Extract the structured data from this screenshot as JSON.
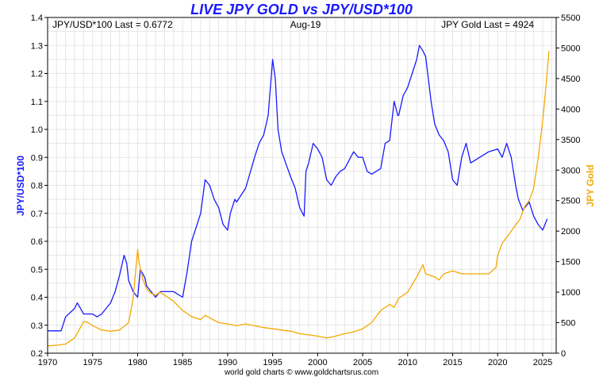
{
  "chart_data": {
    "type": "line",
    "title": "LIVE JPY GOLD vs JPY/USD*100",
    "header_left": "JPY/USD*100 Last = 0.6772",
    "header_center": "Aug-19",
    "header_right": "JPY Gold Last = 4924",
    "credit": "world gold charts © www.goldchartsrus.com",
    "ylabel_left": "JPY/USD*100",
    "ylabel_right": "JPY Gold",
    "xlim": [
      1970,
      2026.5
    ],
    "ylim_left": [
      0.2,
      1.4
    ],
    "ylim_right": [
      0,
      5500
    ],
    "x_ticks": [
      1970,
      1975,
      1980,
      1985,
      1990,
      1995,
      2000,
      2005,
      2010,
      2015,
      2020,
      2025
    ],
    "y_ticks_left": [
      "0.2",
      "0.3",
      "0.4",
      "0.5",
      "0.6",
      "0.7",
      "0.8",
      "0.9",
      "1.0",
      "1.1",
      "1.2",
      "1.3",
      "1.4"
    ],
    "y_ticks_right": [
      "0",
      "500",
      "1000",
      "1500",
      "2000",
      "2500",
      "3000",
      "3500",
      "4000",
      "4500",
      "5000",
      "5500"
    ],
    "grid": true,
    "series": [
      {
        "name": "JPY/USD*100",
        "axis": "left",
        "color": "#1a1aff",
        "x": [
          1970,
          1971.5,
          1971.7,
          1972,
          1973,
          1973.3,
          1974,
          1975,
          1975.5,
          1976,
          1977,
          1977.5,
          1978,
          1978.5,
          1978.8,
          1979,
          1979.5,
          1980,
          1980.3,
          1980.8,
          1981,
          1982,
          1982.5,
          1983,
          1984,
          1985,
          1985.5,
          1986,
          1986.5,
          1987,
          1987.5,
          1988,
          1988.5,
          1989,
          1989.5,
          1990,
          1990.3,
          1990.8,
          1991,
          1992,
          1993,
          1993.5,
          1994,
          1994.5,
          1995,
          1995.3,
          1995.6,
          1996,
          1997,
          1997.5,
          1998,
          1998.5,
          1998.7,
          1999,
          1999.5,
          2000,
          2000.5,
          2001,
          2001.5,
          2002,
          2002.5,
          2003,
          2004,
          2004.5,
          2005,
          2005.5,
          2006,
          2007,
          2007.5,
          2008,
          2008.5,
          2008.9,
          2009,
          2009.5,
          2010,
          2010.5,
          2011,
          2011.3,
          2011.7,
          2012,
          2012.3,
          2012.6,
          2013,
          2013.5,
          2014,
          2014.5,
          2015,
          2015.5,
          2016,
          2016.5,
          2017,
          2018,
          2019,
          2020,
          2020.5,
          2021,
          2021.5,
          2022,
          2022.3,
          2022.8,
          2023,
          2023.5,
          2024,
          2024.5,
          2025,
          2025.5
        ],
        "values": [
          0.28,
          0.28,
          0.3,
          0.33,
          0.36,
          0.38,
          0.34,
          0.34,
          0.33,
          0.34,
          0.38,
          0.42,
          0.48,
          0.55,
          0.52,
          0.46,
          0.42,
          0.4,
          0.5,
          0.47,
          0.44,
          0.4,
          0.42,
          0.42,
          0.42,
          0.4,
          0.49,
          0.6,
          0.65,
          0.7,
          0.82,
          0.8,
          0.75,
          0.72,
          0.66,
          0.64,
          0.7,
          0.75,
          0.74,
          0.79,
          0.9,
          0.95,
          0.98,
          1.05,
          1.25,
          1.18,
          1.0,
          0.92,
          0.83,
          0.79,
          0.72,
          0.69,
          0.85,
          0.88,
          0.95,
          0.93,
          0.9,
          0.82,
          0.8,
          0.83,
          0.85,
          0.86,
          0.92,
          0.9,
          0.9,
          0.85,
          0.84,
          0.86,
          0.95,
          0.96,
          1.1,
          1.05,
          1.05,
          1.12,
          1.15,
          1.2,
          1.25,
          1.3,
          1.28,
          1.26,
          1.18,
          1.1,
          1.02,
          0.98,
          0.96,
          0.92,
          0.82,
          0.8,
          0.9,
          0.95,
          0.88,
          0.9,
          0.92,
          0.93,
          0.9,
          0.95,
          0.9,
          0.8,
          0.75,
          0.71,
          0.72,
          0.74,
          0.69,
          0.66,
          0.64,
          0.68
        ]
      },
      {
        "name": "JPY Gold",
        "axis": "right",
        "color": "#f5a800",
        "x": [
          1970,
          1971,
          1972,
          1973,
          1973.5,
          1974,
          1974.5,
          1975,
          1976,
          1977,
          1978,
          1979,
          1979.5,
          1980,
          1980.2,
          1980.6,
          1981,
          1981.5,
          1982,
          1982.5,
          1983,
          1983.5,
          1984,
          1985,
          1986,
          1987,
          1987.5,
          1988,
          1989,
          1990,
          1991,
          1992,
          1993,
          1994,
          1995,
          1996,
          1997,
          1998,
          1999,
          2000,
          2001,
          2002,
          2003,
          2004,
          2005,
          2006,
          2006.5,
          2007,
          2008,
          2008.5,
          2009,
          2010,
          2011,
          2011.7,
          2012,
          2013,
          2013.5,
          2014,
          2015,
          2016,
          2017,
          2018,
          2019,
          2019.8,
          2020,
          2020.5,
          2021,
          2021.5,
          2022,
          2022.5,
          2023,
          2023.5,
          2024,
          2024.5,
          2025,
          2025.5,
          2025.7
        ],
        "values": [
          120,
          130,
          150,
          250,
          380,
          520,
          500,
          450,
          380,
          360,
          380,
          500,
          900,
          1700,
          1450,
          1200,
          1050,
          980,
          950,
          1000,
          950,
          900,
          850,
          700,
          600,
          550,
          620,
          580,
          500,
          480,
          450,
          480,
          450,
          420,
          400,
          380,
          360,
          320,
          300,
          280,
          250,
          280,
          320,
          350,
          400,
          500,
          600,
          700,
          800,
          750,
          900,
          1000,
          1250,
          1450,
          1300,
          1250,
          1200,
          1300,
          1350,
          1300,
          1300,
          1300,
          1300,
          1400,
          1600,
          1800,
          1900,
          2000,
          2100,
          2200,
          2400,
          2500,
          2700,
          3200,
          3800,
          4600,
          4950
        ]
      }
    ]
  }
}
